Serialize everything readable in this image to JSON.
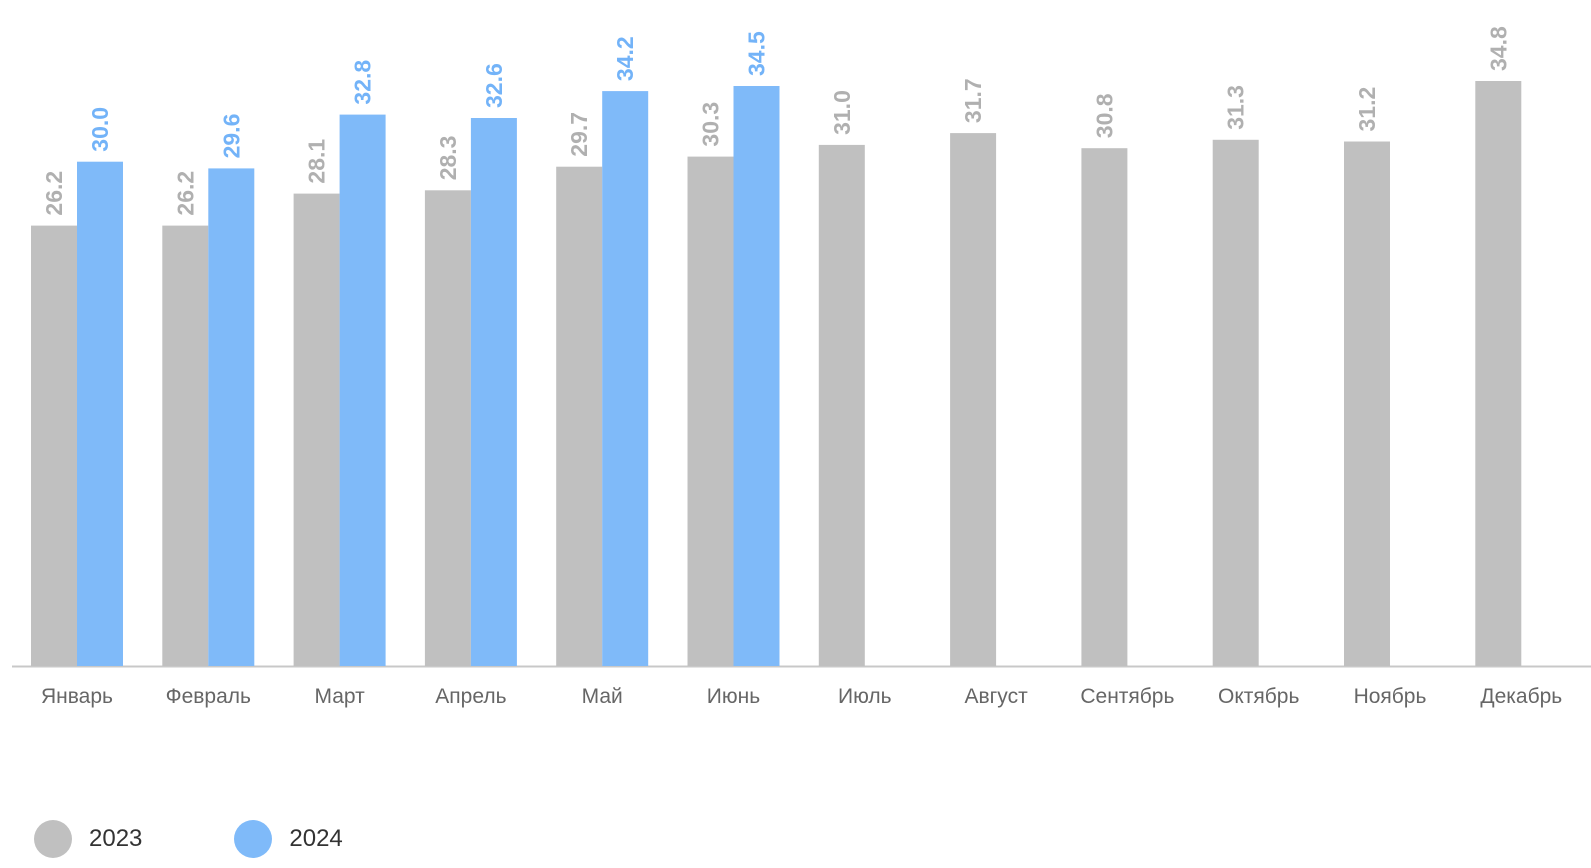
{
  "chart_data": {
    "type": "bar",
    "categories": [
      "Январь",
      "Февраль",
      "Март",
      "Апрель",
      "Май",
      "Июнь",
      "Июль",
      "Август",
      "Сентябрь",
      "Октябрь",
      "Ноябрь",
      "Декабрь"
    ],
    "series": [
      {
        "name": "2023",
        "color": "#c0c0c0",
        "label_color": "#b0b0b0",
        "values": [
          26.2,
          26.2,
          28.1,
          28.3,
          29.7,
          30.3,
          31.0,
          31.7,
          30.8,
          31.3,
          31.2,
          34.8
        ]
      },
      {
        "name": "2024",
        "color": "#7fbaf9",
        "label_color": "#73b3f8",
        "values": [
          30.0,
          29.6,
          32.8,
          32.6,
          34.2,
          34.5,
          null,
          null,
          null,
          null,
          null,
          null
        ]
      }
    ],
    "ylim": [
      0,
      34.8
    ],
    "grid": false,
    "legend_position": "bottom-left",
    "data_labels": "rotated-vertical",
    "axis_color": "#c8c8c8",
    "tick_label_color": "#666666"
  }
}
